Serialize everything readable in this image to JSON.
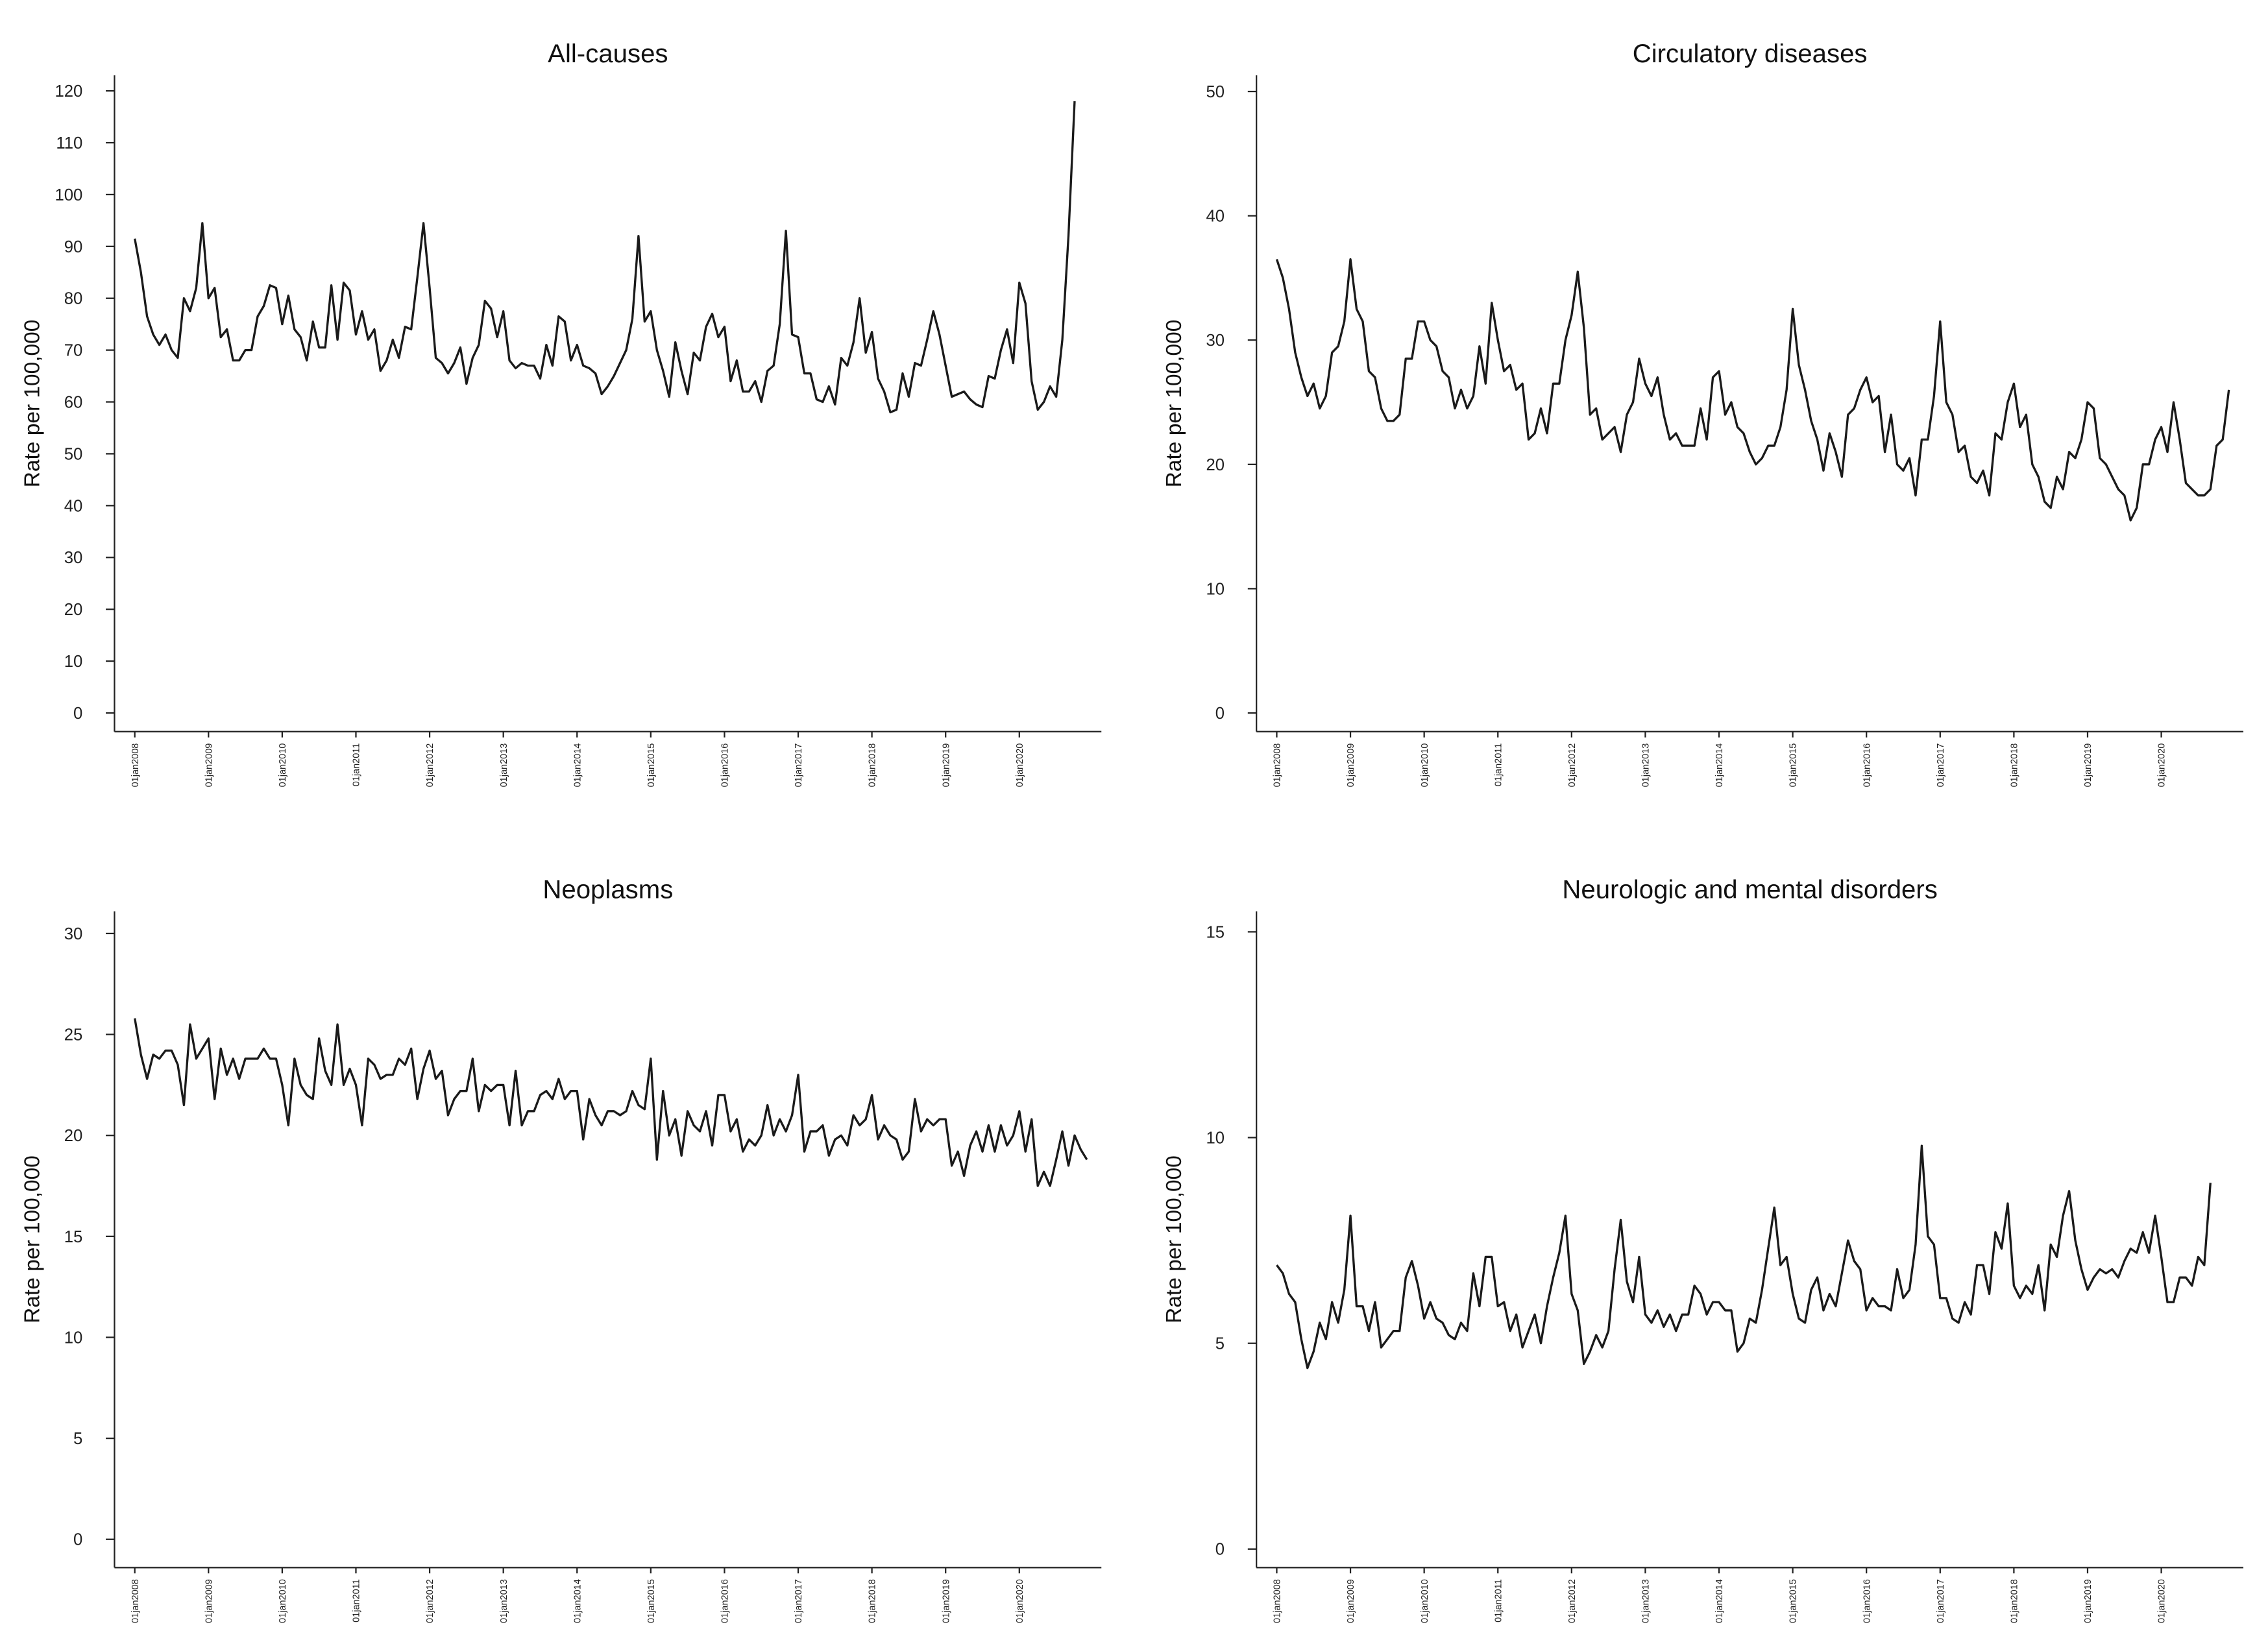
{
  "chart_data": [
    {
      "type": "line",
      "title": "All-causes",
      "ylabel": "Rate per 100,000",
      "color": "#1a1a1a",
      "categories": [
        "01jan2008",
        null,
        null,
        null,
        null,
        null,
        null,
        null,
        null,
        null,
        null,
        null,
        "01jan2009",
        null,
        null,
        null,
        null,
        null,
        null,
        null,
        null,
        null,
        null,
        null,
        "01jan2010",
        null,
        null,
        null,
        null,
        null,
        null,
        null,
        null,
        null,
        null,
        null,
        "01jan2011",
        null,
        null,
        null,
        null,
        null,
        null,
        null,
        null,
        null,
        null,
        null,
        "01jan2012",
        null,
        null,
        null,
        null,
        null,
        null,
        null,
        null,
        null,
        null,
        null,
        "01jan2013",
        null,
        null,
        null,
        null,
        null,
        null,
        null,
        null,
        null,
        null,
        null,
        "01jan2014",
        null,
        null,
        null,
        null,
        null,
        null,
        null,
        null,
        null,
        null,
        null,
        "01jan2015",
        null,
        null,
        null,
        null,
        null,
        null,
        null,
        null,
        null,
        null,
        null,
        "01jan2016",
        null,
        null,
        null,
        null,
        null,
        null,
        null,
        null,
        null,
        null,
        null,
        "01jan2017",
        null,
        null,
        null,
        null,
        null,
        null,
        null,
        null,
        null,
        null,
        null,
        "01jan2018",
        null,
        null,
        null,
        null,
        null,
        null,
        null,
        null,
        null,
        null,
        null,
        "01jan2019",
        null,
        null,
        null,
        null,
        null,
        null,
        null,
        null,
        null,
        null,
        null,
        "01jan2020",
        null,
        null,
        null,
        null,
        null,
        null,
        null,
        null,
        null,
        null,
        null
      ],
      "values": [
        91.5,
        85,
        76.5,
        73,
        71,
        73,
        70,
        68.5,
        80,
        77.5,
        82,
        94.5,
        80,
        82,
        72.5,
        74,
        68,
        68,
        70,
        70,
        76.5,
        78.5,
        82.5,
        82,
        75,
        80.5,
        74,
        72.5,
        68,
        75.5,
        70.5,
        70.5,
        82.5,
        72,
        83,
        81.5,
        73,
        77.5,
        72,
        74,
        66,
        68,
        72,
        68.5,
        74.5,
        74,
        84,
        94.5,
        82,
        68.5,
        67.5,
        65.5,
        67.5,
        70.5,
        63.5,
        68.5,
        71,
        79.5,
        78,
        72.5,
        77.5,
        68,
        66.5,
        67.5,
        67,
        67,
        64.5,
        71,
        67,
        76.5,
        75.5,
        68,
        71,
        67,
        66.5,
        65.5,
        61.5,
        63,
        65,
        67.5,
        70,
        76,
        92,
        75.5,
        77.5,
        70,
        66,
        61,
        71.5,
        66,
        61.5,
        69.5,
        68,
        74.5,
        77,
        72.5,
        74.5,
        64,
        68,
        62,
        62,
        64,
        60,
        66,
        67,
        75,
        93,
        73,
        72.5,
        65.5,
        65.5,
        60.5,
        60,
        63,
        59.5,
        68.5,
        67,
        71.5,
        80,
        69.5,
        73.5,
        64.5,
        62,
        58,
        58.5,
        65.5,
        61,
        67.5,
        67,
        72,
        77.5,
        73,
        67,
        61,
        61.5,
        62,
        60.5,
        59.5,
        59,
        65,
        64.5,
        70,
        74,
        67.5,
        83,
        79,
        64,
        58.5,
        60,
        63,
        61,
        72,
        92,
        118,
        null,
        null
      ],
      "ylim": [
        -3.6,
        123
      ],
      "yticks": [
        0,
        10,
        20,
        30,
        40,
        50,
        60,
        70,
        80,
        90,
        100,
        110,
        120
      ]
    },
    {
      "type": "line",
      "title": "Circulatory diseases",
      "ylabel": "Rate per 100,000",
      "color": "#1a1a1a",
      "categories": [
        "01jan2008",
        null,
        null,
        null,
        null,
        null,
        null,
        null,
        null,
        null,
        null,
        null,
        "01jan2009",
        null,
        null,
        null,
        null,
        null,
        null,
        null,
        null,
        null,
        null,
        null,
        "01jan2010",
        null,
        null,
        null,
        null,
        null,
        null,
        null,
        null,
        null,
        null,
        null,
        "01jan2011",
        null,
        null,
        null,
        null,
        null,
        null,
        null,
        null,
        null,
        null,
        null,
        "01jan2012",
        null,
        null,
        null,
        null,
        null,
        null,
        null,
        null,
        null,
        null,
        null,
        "01jan2013",
        null,
        null,
        null,
        null,
        null,
        null,
        null,
        null,
        null,
        null,
        null,
        "01jan2014",
        null,
        null,
        null,
        null,
        null,
        null,
        null,
        null,
        null,
        null,
        null,
        "01jan2015",
        null,
        null,
        null,
        null,
        null,
        null,
        null,
        null,
        null,
        null,
        null,
        "01jan2016",
        null,
        null,
        null,
        null,
        null,
        null,
        null,
        null,
        null,
        null,
        null,
        "01jan2017",
        null,
        null,
        null,
        null,
        null,
        null,
        null,
        null,
        null,
        null,
        null,
        "01jan2018",
        null,
        null,
        null,
        null,
        null,
        null,
        null,
        null,
        null,
        null,
        null,
        "01jan2019",
        null,
        null,
        null,
        null,
        null,
        null,
        null,
        null,
        null,
        null,
        null,
        "01jan2020",
        null,
        null,
        null,
        null,
        null,
        null,
        null,
        null,
        null,
        null,
        null
      ],
      "values": [
        36.5,
        35,
        32.5,
        29,
        27,
        25.5,
        26.5,
        24.5,
        25.5,
        29,
        29.5,
        31.5,
        36.5,
        32.5,
        31.5,
        27.5,
        27,
        24.5,
        23.5,
        23.5,
        24,
        28.5,
        28.5,
        31.5,
        31.5,
        30,
        29.5,
        27.5,
        27,
        24.5,
        26,
        24.5,
        25.5,
        29.5,
        26.5,
        33,
        30,
        27.5,
        28,
        26,
        26.5,
        22,
        22.5,
        24.5,
        22.5,
        26.5,
        26.5,
        30,
        32,
        35.5,
        31,
        24,
        24.5,
        22,
        22.5,
        23,
        21,
        24,
        25,
        28.5,
        26.5,
        25.5,
        27,
        24,
        22,
        22.5,
        21.5,
        21.5,
        21.5,
        24.5,
        22,
        27,
        27.5,
        24,
        25,
        23,
        22.5,
        21,
        20,
        20.5,
        21.5,
        21.5,
        23,
        26,
        32.5,
        28,
        26,
        23.5,
        22,
        19.5,
        22.5,
        21,
        19,
        24,
        24.5,
        26,
        27,
        25,
        25.5,
        21,
        24,
        20,
        19.5,
        20.5,
        17.5,
        22,
        22,
        25.5,
        31.5,
        25,
        24,
        21,
        21.5,
        19,
        18.5,
        19.5,
        17.5,
        22.5,
        22,
        25,
        26.5,
        23,
        24,
        20,
        19,
        17,
        16.5,
        19,
        18,
        21,
        20.5,
        22,
        25,
        24.5,
        20.5,
        20,
        19,
        18,
        17.5,
        15.5,
        16.5,
        20,
        20,
        22,
        23,
        21,
        25,
        22,
        18.5,
        18,
        17.5,
        17.5,
        18,
        21.5,
        22,
        26
      ],
      "ylim": [
        -1.5,
        51.3
      ],
      "yticks": [
        0,
        10,
        20,
        30,
        40,
        50
      ]
    },
    {
      "type": "line",
      "title": "Neoplasms",
      "ylabel": "Rate per 100,000",
      "color": "#1a1a1a",
      "categories": [
        "01jan2008",
        null,
        null,
        null,
        null,
        null,
        null,
        null,
        null,
        null,
        null,
        null,
        "01jan2009",
        null,
        null,
        null,
        null,
        null,
        null,
        null,
        null,
        null,
        null,
        null,
        "01jan2010",
        null,
        null,
        null,
        null,
        null,
        null,
        null,
        null,
        null,
        null,
        null,
        "01jan2011",
        null,
        null,
        null,
        null,
        null,
        null,
        null,
        null,
        null,
        null,
        null,
        "01jan2012",
        null,
        null,
        null,
        null,
        null,
        null,
        null,
        null,
        null,
        null,
        null,
        "01jan2013",
        null,
        null,
        null,
        null,
        null,
        null,
        null,
        null,
        null,
        null,
        null,
        "01jan2014",
        null,
        null,
        null,
        null,
        null,
        null,
        null,
        null,
        null,
        null,
        null,
        "01jan2015",
        null,
        null,
        null,
        null,
        null,
        null,
        null,
        null,
        null,
        null,
        null,
        "01jan2016",
        null,
        null,
        null,
        null,
        null,
        null,
        null,
        null,
        null,
        null,
        null,
        "01jan2017",
        null,
        null,
        null,
        null,
        null,
        null,
        null,
        null,
        null,
        null,
        null,
        "01jan2018",
        null,
        null,
        null,
        null,
        null,
        null,
        null,
        null,
        null,
        null,
        null,
        "01jan2019",
        null,
        null,
        null,
        null,
        null,
        null,
        null,
        null,
        null,
        null,
        null,
        "01jan2020",
        null,
        null,
        null,
        null,
        null,
        null,
        null,
        null,
        null,
        null,
        null
      ],
      "values": [
        25.8,
        24,
        22.8,
        24,
        23.8,
        24.2,
        24.2,
        23.5,
        21.5,
        25.5,
        23.8,
        24.3,
        24.8,
        21.8,
        24.3,
        23,
        23.8,
        22.8,
        23.8,
        23.8,
        23.8,
        24.3,
        23.8,
        23.8,
        22.5,
        20.5,
        23.8,
        22.5,
        22,
        21.8,
        24.8,
        23.2,
        22.5,
        25.5,
        22.5,
        23.3,
        22.5,
        20.5,
        23.8,
        23.5,
        22.8,
        23,
        23,
        23.8,
        23.5,
        24.3,
        21.8,
        23.3,
        24.2,
        22.8,
        23.2,
        21,
        21.8,
        22.2,
        22.2,
        23.8,
        21.2,
        22.5,
        22.2,
        22.5,
        22.5,
        20.5,
        23.2,
        20.5,
        21.2,
        21.2,
        22,
        22.2,
        21.8,
        22.8,
        21.8,
        22.2,
        22.2,
        19.8,
        21.8,
        21,
        20.5,
        21.2,
        21.2,
        21,
        21.2,
        22.2,
        21.5,
        21.3,
        23.8,
        18.8,
        22.2,
        20,
        20.8,
        19,
        21.2,
        20.5,
        20.2,
        21.2,
        19.5,
        22,
        22,
        20.2,
        20.8,
        19.2,
        19.8,
        19.5,
        20,
        21.5,
        20,
        20.8,
        20.2,
        21,
        23,
        19.2,
        20.2,
        20.2,
        20.5,
        19,
        19.8,
        20,
        19.5,
        21,
        20.5,
        20.8,
        22,
        19.8,
        20.5,
        20,
        19.8,
        18.8,
        19.2,
        21.8,
        20.2,
        20.8,
        20.5,
        20.8,
        20.8,
        18.5,
        19.2,
        18,
        19.5,
        20.2,
        19.2,
        20.5,
        19.2,
        20.5,
        19.5,
        20,
        21.2,
        19.2,
        20.8,
        17.5,
        18.2,
        17.5,
        18.8,
        20.2,
        18.5,
        20,
        19.3,
        18.8
      ],
      "ylim": [
        -1.4,
        31.1
      ],
      "yticks": [
        0,
        5,
        10,
        15,
        20,
        25,
        30
      ]
    },
    {
      "type": "line",
      "title": "Neurologic and mental disorders",
      "ylabel": "Rate per 100,000",
      "color": "#1a1a1a",
      "categories": [
        "01jan2008",
        null,
        null,
        null,
        null,
        null,
        null,
        null,
        null,
        null,
        null,
        null,
        "01jan2009",
        null,
        null,
        null,
        null,
        null,
        null,
        null,
        null,
        null,
        null,
        null,
        "01jan2010",
        null,
        null,
        null,
        null,
        null,
        null,
        null,
        null,
        null,
        null,
        null,
        "01jan2011",
        null,
        null,
        null,
        null,
        null,
        null,
        null,
        null,
        null,
        null,
        null,
        "01jan2012",
        null,
        null,
        null,
        null,
        null,
        null,
        null,
        null,
        null,
        null,
        null,
        "01jan2013",
        null,
        null,
        null,
        null,
        null,
        null,
        null,
        null,
        null,
        null,
        null,
        "01jan2014",
        null,
        null,
        null,
        null,
        null,
        null,
        null,
        null,
        null,
        null,
        null,
        "01jan2015",
        null,
        null,
        null,
        null,
        null,
        null,
        null,
        null,
        null,
        null,
        null,
        "01jan2016",
        null,
        null,
        null,
        null,
        null,
        null,
        null,
        null,
        null,
        null,
        null,
        "01jan2017",
        null,
        null,
        null,
        null,
        null,
        null,
        null,
        null,
        null,
        null,
        null,
        "01jan2018",
        null,
        null,
        null,
        null,
        null,
        null,
        null,
        null,
        null,
        null,
        null,
        "01jan2019",
        null,
        null,
        null,
        null,
        null,
        null,
        null,
        null,
        null,
        null,
        null,
        "01jan2020",
        null,
        null,
        null,
        null,
        null,
        null,
        null,
        null,
        null,
        null,
        null
      ],
      "values": [
        6.9,
        6.7,
        6.2,
        6,
        5.1,
        4.4,
        4.8,
        5.5,
        5.1,
        6,
        5.5,
        6.3,
        8.1,
        5.9,
        5.9,
        5.3,
        6,
        4.9,
        5.1,
        5.3,
        5.3,
        6.6,
        7,
        6.4,
        5.6,
        6,
        5.6,
        5.5,
        5.2,
        5.1,
        5.5,
        5.3,
        6.7,
        5.9,
        7.1,
        7.1,
        5.9,
        6,
        5.3,
        5.7,
        4.9,
        5.3,
        5.7,
        5,
        5.9,
        6.6,
        7.2,
        8.1,
        6.2,
        5.8,
        4.5,
        4.8,
        5.2,
        4.9,
        5.3,
        6.8,
        8,
        6.5,
        6,
        7.1,
        5.7,
        5.5,
        5.8,
        5.4,
        5.7,
        5.3,
        5.7,
        5.7,
        6.4,
        6.2,
        5.7,
        6,
        6,
        5.8,
        5.8,
        4.8,
        5,
        5.6,
        5.5,
        6.3,
        7.3,
        8.3,
        6.9,
        7.1,
        6.2,
        5.6,
        5.5,
        6.3,
        6.6,
        5.8,
        6.2,
        5.9,
        6.7,
        7.5,
        7,
        6.8,
        5.8,
        6.1,
        5.9,
        5.9,
        5.8,
        6.8,
        6.1,
        6.3,
        7.4,
        9.8,
        7.6,
        7.4,
        6.1,
        6.1,
        5.6,
        5.5,
        6,
        5.7,
        6.9,
        6.9,
        6.2,
        7.7,
        7.3,
        8.4,
        6.4,
        6.1,
        6.4,
        6.2,
        6.9,
        5.8,
        7.4,
        7.1,
        8.1,
        8.7,
        7.5,
        6.8,
        6.3,
        6.6,
        6.8,
        6.7,
        6.8,
        6.6,
        7,
        7.3,
        7.2,
        7.7,
        7.2,
        8.1,
        7.1,
        6,
        6,
        6.6,
        6.6,
        6.4,
        7.1,
        6.9,
        8.9,
        null,
        null,
        null
      ],
      "ylim": [
        -0.45,
        15.5
      ],
      "yticks": [
        0,
        5,
        10,
        15
      ]
    }
  ]
}
